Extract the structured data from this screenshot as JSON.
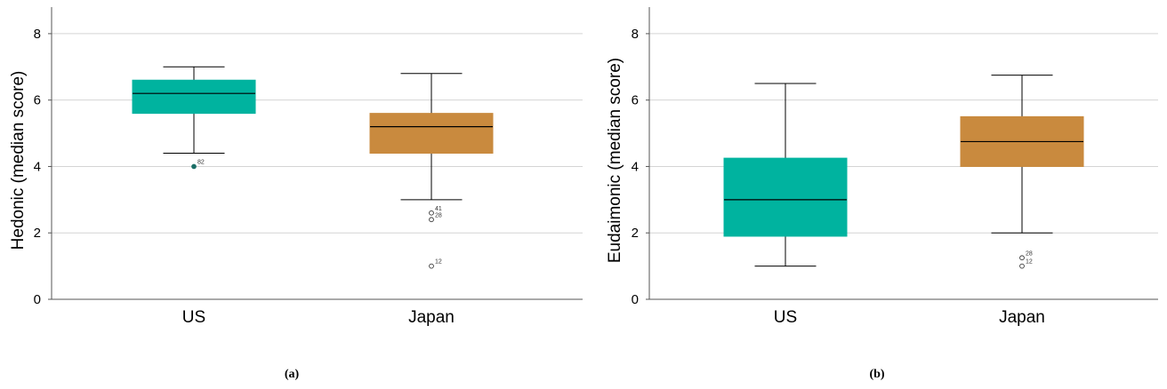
{
  "chart_data": [
    {
      "type": "box",
      "caption": "(a)",
      "ylabel": "Hedonic (median score)",
      "ylim": [
        0,
        8.8
      ],
      "yticks": [
        0,
        2,
        4,
        6,
        8
      ],
      "grid": true,
      "colors": [
        "#00b39f",
        "#c98a3e"
      ],
      "groups": [
        {
          "category": "US",
          "whisker_low": 4.4,
          "q1": 5.6,
          "median": 6.2,
          "q3": 6.6,
          "whisker_high": 7.0,
          "outliers": [
            {
              "label": "82",
              "value": 4.0,
              "filled": true
            }
          ]
        },
        {
          "category": "Japan",
          "whisker_low": 3.0,
          "q1": 4.4,
          "median": 5.2,
          "q3": 5.6,
          "whisker_high": 6.8,
          "outliers": [
            {
              "label": "41",
              "value": 2.6,
              "filled": false
            },
            {
              "label": "28",
              "value": 2.4,
              "filled": false
            },
            {
              "label": "12",
              "value": 1.0,
              "filled": false
            }
          ]
        }
      ]
    },
    {
      "type": "box",
      "caption": "(b)",
      "ylabel": "Eudaimonic (median score)",
      "ylim": [
        0,
        8.8
      ],
      "yticks": [
        0,
        2,
        4,
        6,
        8
      ],
      "grid": true,
      "colors": [
        "#00b39f",
        "#c98a3e"
      ],
      "groups": [
        {
          "category": "US",
          "whisker_low": 1.0,
          "q1": 1.9,
          "median": 3.0,
          "q3": 4.25,
          "whisker_high": 6.5,
          "outliers": []
        },
        {
          "category": "Japan",
          "whisker_low": 2.0,
          "q1": 4.0,
          "median": 4.75,
          "q3": 5.5,
          "whisker_high": 6.75,
          "outliers": [
            {
              "label": "28",
              "value": 1.25,
              "filled": false
            },
            {
              "label": "12",
              "value": 1.0,
              "filled": false
            }
          ]
        }
      ]
    }
  ]
}
